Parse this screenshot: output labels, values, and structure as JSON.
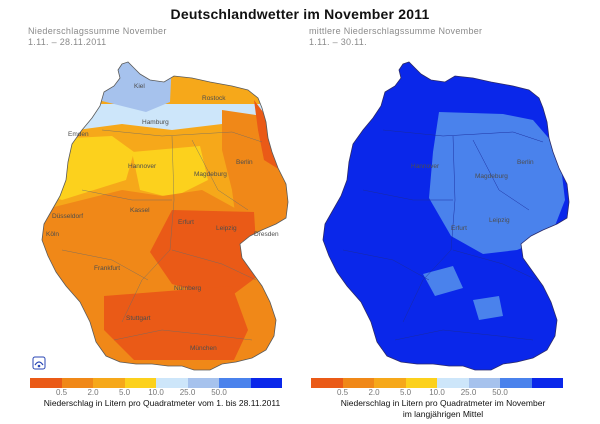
{
  "title": "Deutschlandwetter im November 2011",
  "panels": [
    {
      "subtitle_line1": "Niederschlagssumme November",
      "subtitle_line2": "1.11. – 28.11.2011",
      "caption": "Niederschlag in Litern pro Quadratmeter vom 1. bis 28.11.2011",
      "legend_colors": [
        "#ea5a17",
        "#f08818",
        "#f6a81a",
        "#fcd11d",
        "#cde6fa",
        "#a6c2ed",
        "#4a82ec",
        "#0a27ea"
      ],
      "legend_ticks": [
        "0.5",
        "2.0",
        "5.0",
        "10.0",
        "25.0",
        "50.0"
      ],
      "cities": [
        "Kiel",
        "Rostock",
        "Hamburg",
        "Emden",
        "Hannover",
        "Berlin",
        "Magdeburg",
        "Düsseldorf",
        "Kassel",
        "Leipzig",
        "Dresden",
        "Köln",
        "Erfurt",
        "Frankfurt",
        "Nürnberg",
        "Stuttgart",
        "München"
      ],
      "region_colors": {
        "north": "#cde6fa",
        "kiel": "#a6c2ed",
        "base": "#f6a81a",
        "yellow": "#fcd11d",
        "east": "#f08818",
        "south": "#f08818",
        "core": "#ea5a17"
      }
    },
    {
      "subtitle_line1": "mittlere Niederschlagssumme November",
      "subtitle_line2": "1.11. – 30.11.",
      "caption_line1": "Niederschlag in Litern pro Quadratmeter im November",
      "caption_line2": "im langjährigen Mittel",
      "legend_colors": [
        "#ea5a17",
        "#f08818",
        "#f6a81a",
        "#fcd11d",
        "#cde6fa",
        "#a6c2ed",
        "#4a82ec",
        "#0a27ea"
      ],
      "legend_ticks": [
        "0.5",
        "2.0",
        "5.0",
        "10.0",
        "25.0",
        "50.0"
      ],
      "cities": [
        "Hannover",
        "Magdeburg",
        "Berlin",
        "Leipzig",
        "Erfurt"
      ],
      "region_colors": {
        "base": "#0a27ea",
        "east": "#4a82ec"
      }
    }
  ]
}
